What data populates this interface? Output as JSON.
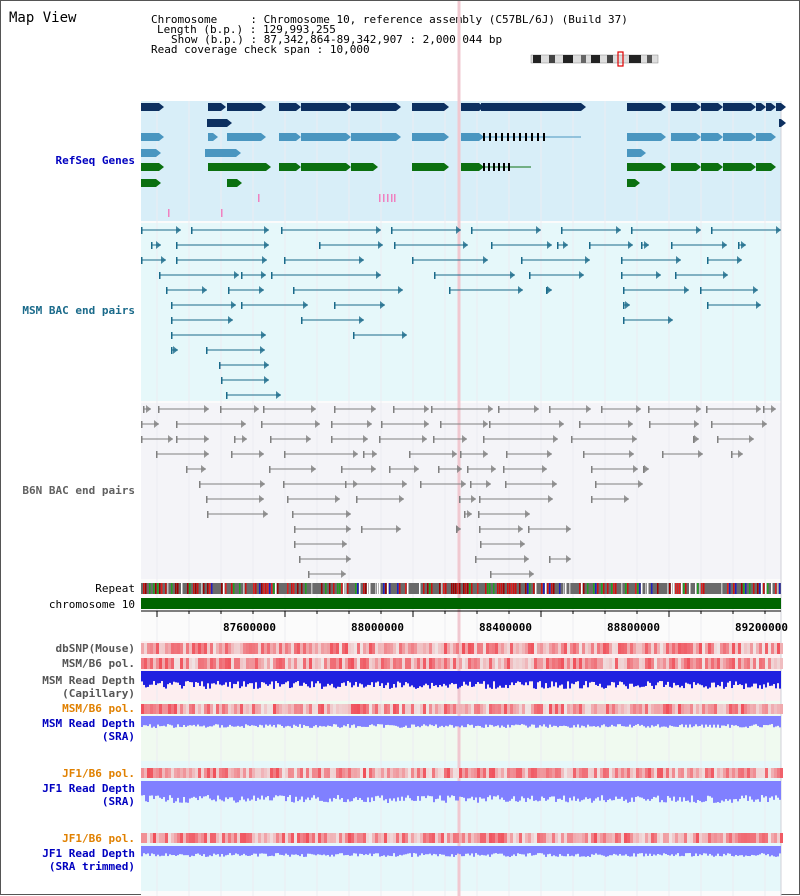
{
  "app": {
    "title": "Map View"
  },
  "header": {
    "chromosome_label": "Chromosome",
    "chromosome_value": "Chromosome 10, reference assembly (C57BL/6J) (Build 37)",
    "length_label": "Length (b.p.)",
    "length_value": "129,993,255",
    "show_label": "Show (b.p.)",
    "show_value": "87,342,864-89,342,907 : 2,000,044 bp",
    "coverage_label": "Read coverage check span",
    "coverage_value": "10,000"
  },
  "tracks": {
    "refseq": "RefSeq Genes",
    "msm_bac": "MSM BAC end pairs",
    "b6n_bac": "B6N BAC end pairs",
    "repeat": "Repeat",
    "chromosome": "chromosome 10",
    "dbsnp": "dbSNP(Mouse)",
    "msm_b6_pol_1": "MSM/B6 pol.",
    "msm_read_depth_cap_1": "MSM Read Depth",
    "msm_read_depth_cap_2": "(Capillary)",
    "msm_b6_pol_2": "MSM/B6 pol.",
    "msm_read_depth_sra_1": "MSM Read Depth",
    "msm_read_depth_sra_2": "(SRA)",
    "jf1_b6_pol_1": "JF1/B6 pol.",
    "jf1_read_depth_sra_1": "JF1 Read Depth",
    "jf1_read_depth_sra_2": "(SRA)",
    "jf1_b6_pol_2": "JF1/B6 pol.",
    "jf1_read_depth_trim_1": "JF1 Read Depth",
    "jf1_read_depth_trim_2": "(SRA trimmed)"
  },
  "axis": {
    "ticks": [
      "87600000",
      "88000000",
      "88400000",
      "88800000",
      "89200000"
    ]
  },
  "colors": {
    "refseq_band": "#d8eef8",
    "msm_band": "#e6f8fa",
    "b6n_band": "#f4f4f8",
    "gene_dark": "#0d3060",
    "gene_mid": "#4a96c0",
    "gene_green": "#0b7010",
    "msm_line": "#1a6a8a",
    "b6n_line": "#808080",
    "chrom_bar": "#006400",
    "depth_cap": "#2020e0",
    "depth_sra": "#8080ff",
    "orange_label": "#e08000",
    "blue_label": "#0000c0"
  }
}
